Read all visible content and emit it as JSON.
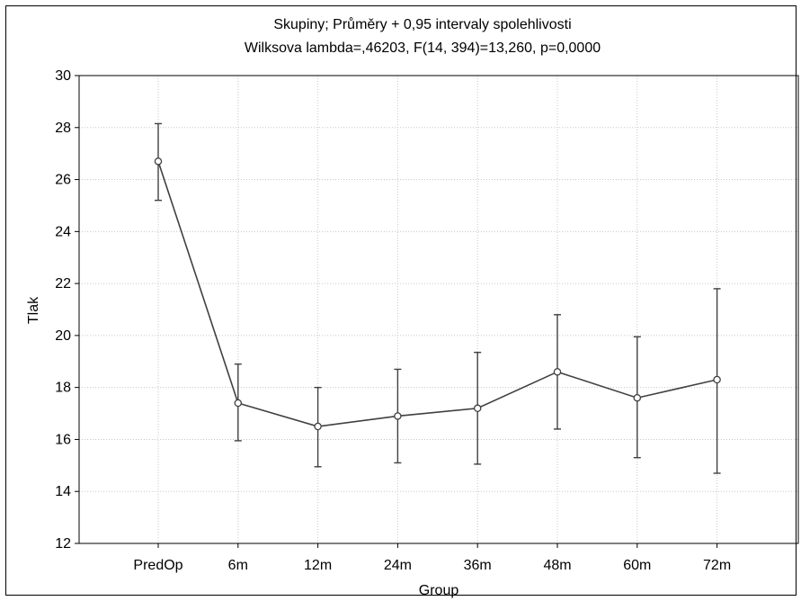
{
  "chart_data": {
    "type": "line",
    "title": "Skupiny; Průměry + 0,95 intervaly spolehlivosti",
    "subtitle": "Wilksova lambda=,46203, F(14, 394)=13,260, p=0,0000",
    "xlabel": "Group",
    "ylabel": "Tlak",
    "ylim": [
      12,
      30
    ],
    "yticks": [
      "12",
      "14",
      "16",
      "18",
      "20",
      "22",
      "24",
      "26",
      "28",
      "30"
    ],
    "categories": [
      "PredOp",
      "6m",
      "12m",
      "24m",
      "36m",
      "48m",
      "60m",
      "72m"
    ],
    "grid": true,
    "series": [
      {
        "values": [
          26.7,
          17.4,
          16.5,
          16.9,
          17.2,
          18.6,
          17.6,
          18.3
        ],
        "lower": [
          25.2,
          15.95,
          14.95,
          15.1,
          15.05,
          16.4,
          15.3,
          14.7
        ],
        "upper": [
          28.15,
          18.9,
          18.0,
          18.7,
          19.35,
          20.8,
          19.95,
          21.8
        ]
      }
    ],
    "colors": {
      "line": "#404040",
      "marker_fill": "#ffffff",
      "grid": "#c8c8c8",
      "axis": "#000000"
    }
  }
}
